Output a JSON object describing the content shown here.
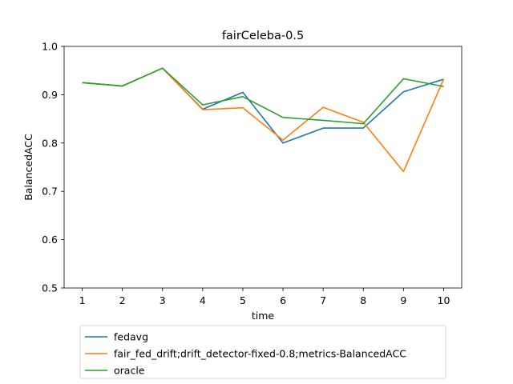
{
  "chart_data": {
    "type": "line",
    "title": "fairCeleba-0.5",
    "xlabel": "time",
    "ylabel": "BalancedACC",
    "x": [
      1,
      2,
      3,
      4,
      5,
      6,
      7,
      8,
      9,
      10
    ],
    "xticks": [
      "1",
      "2",
      "3",
      "4",
      "5",
      "6",
      "7",
      "8",
      "9",
      "10"
    ],
    "yticks": [
      "0.5",
      "0.6",
      "0.7",
      "0.8",
      "0.9",
      "1.0"
    ],
    "xlim": [
      0.55,
      10.45
    ],
    "ylim": [
      0.5,
      1.0
    ],
    "grid": false,
    "legend_position": "below",
    "series": [
      {
        "name": "fedavg",
        "color": "#1f77b4",
        "values": [
          0.925,
          0.918,
          0.955,
          0.87,
          0.905,
          0.8,
          0.831,
          0.831,
          0.906,
          0.932
        ]
      },
      {
        "name": "fair_fed_drift;drift_detector-fixed-0.8;metrics-BalancedACC",
        "color": "#ff7f0e",
        "values": [
          0.925,
          0.918,
          0.955,
          0.869,
          0.873,
          0.806,
          0.874,
          0.843,
          0.741,
          0.932
        ]
      },
      {
        "name": "oracle",
        "color": "#2ca02c",
        "values": [
          0.925,
          0.918,
          0.955,
          0.879,
          0.896,
          0.853,
          0.847,
          0.84,
          0.933,
          0.917
        ]
      }
    ]
  }
}
